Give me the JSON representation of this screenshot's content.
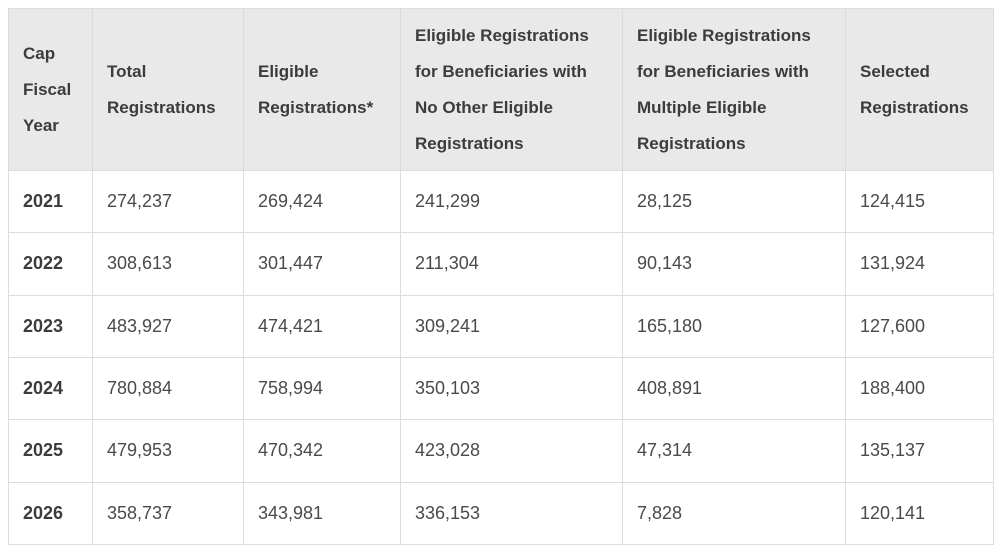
{
  "colors": {
    "header_background": "#e9e9e9",
    "row_background": "#ffffff",
    "border": "#dcdcdc",
    "header_text": "#3c3c3c",
    "cell_text": "#4a4a4a"
  },
  "chart_data": {
    "type": "table",
    "columns": [
      "Cap Fiscal Year",
      "Total Registrations",
      "Eligible Registrations*",
      "Eligible Registrations for Beneficiaries with No Other Eligible Registrations",
      "Eligible Registrations for Beneficiaries with Multiple Eligible Registrations",
      "Selected Registrations"
    ],
    "rows": [
      {
        "year": "2021",
        "values": [
          "274,237",
          "269,424",
          "241,299",
          "28,125",
          "124,415"
        ]
      },
      {
        "year": "2022",
        "values": [
          "308,613",
          "301,447",
          "211,304",
          "90,143",
          "131,924"
        ]
      },
      {
        "year": "2023",
        "values": [
          "483,927",
          "474,421",
          "309,241",
          "165,180",
          "127,600"
        ]
      },
      {
        "year": "2024",
        "values": [
          "780,884",
          "758,994",
          "350,103",
          "408,891",
          "188,400"
        ]
      },
      {
        "year": "2025",
        "values": [
          "479,953",
          "470,342",
          "423,028",
          "47,314",
          "135,137"
        ]
      },
      {
        "year": "2026",
        "values": [
          "358,737",
          "343,981",
          "336,153",
          "7,828",
          "120,141"
        ]
      }
    ],
    "numeric_rows": [
      {
        "year": 2021,
        "total_registrations": 274237,
        "eligible_registrations": 269424,
        "eligible_no_other": 241299,
        "eligible_multiple": 28125,
        "selected_registrations": 124415
      },
      {
        "year": 2022,
        "total_registrations": 308613,
        "eligible_registrations": 301447,
        "eligible_no_other": 211304,
        "eligible_multiple": 90143,
        "selected_registrations": 131924
      },
      {
        "year": 2023,
        "total_registrations": 483927,
        "eligible_registrations": 474421,
        "eligible_no_other": 309241,
        "eligible_multiple": 165180,
        "selected_registrations": 127600
      },
      {
        "year": 2024,
        "total_registrations": 780884,
        "eligible_registrations": 758994,
        "eligible_no_other": 350103,
        "eligible_multiple": 408891,
        "selected_registrations": 188400
      },
      {
        "year": 2025,
        "total_registrations": 479953,
        "eligible_registrations": 470342,
        "eligible_no_other": 423028,
        "eligible_multiple": 47314,
        "selected_registrations": 135137
      },
      {
        "year": 2026,
        "total_registrations": 358737,
        "eligible_registrations": 343981,
        "eligible_no_other": 336153,
        "eligible_multiple": 7828,
        "selected_registrations": 120141
      }
    ]
  }
}
